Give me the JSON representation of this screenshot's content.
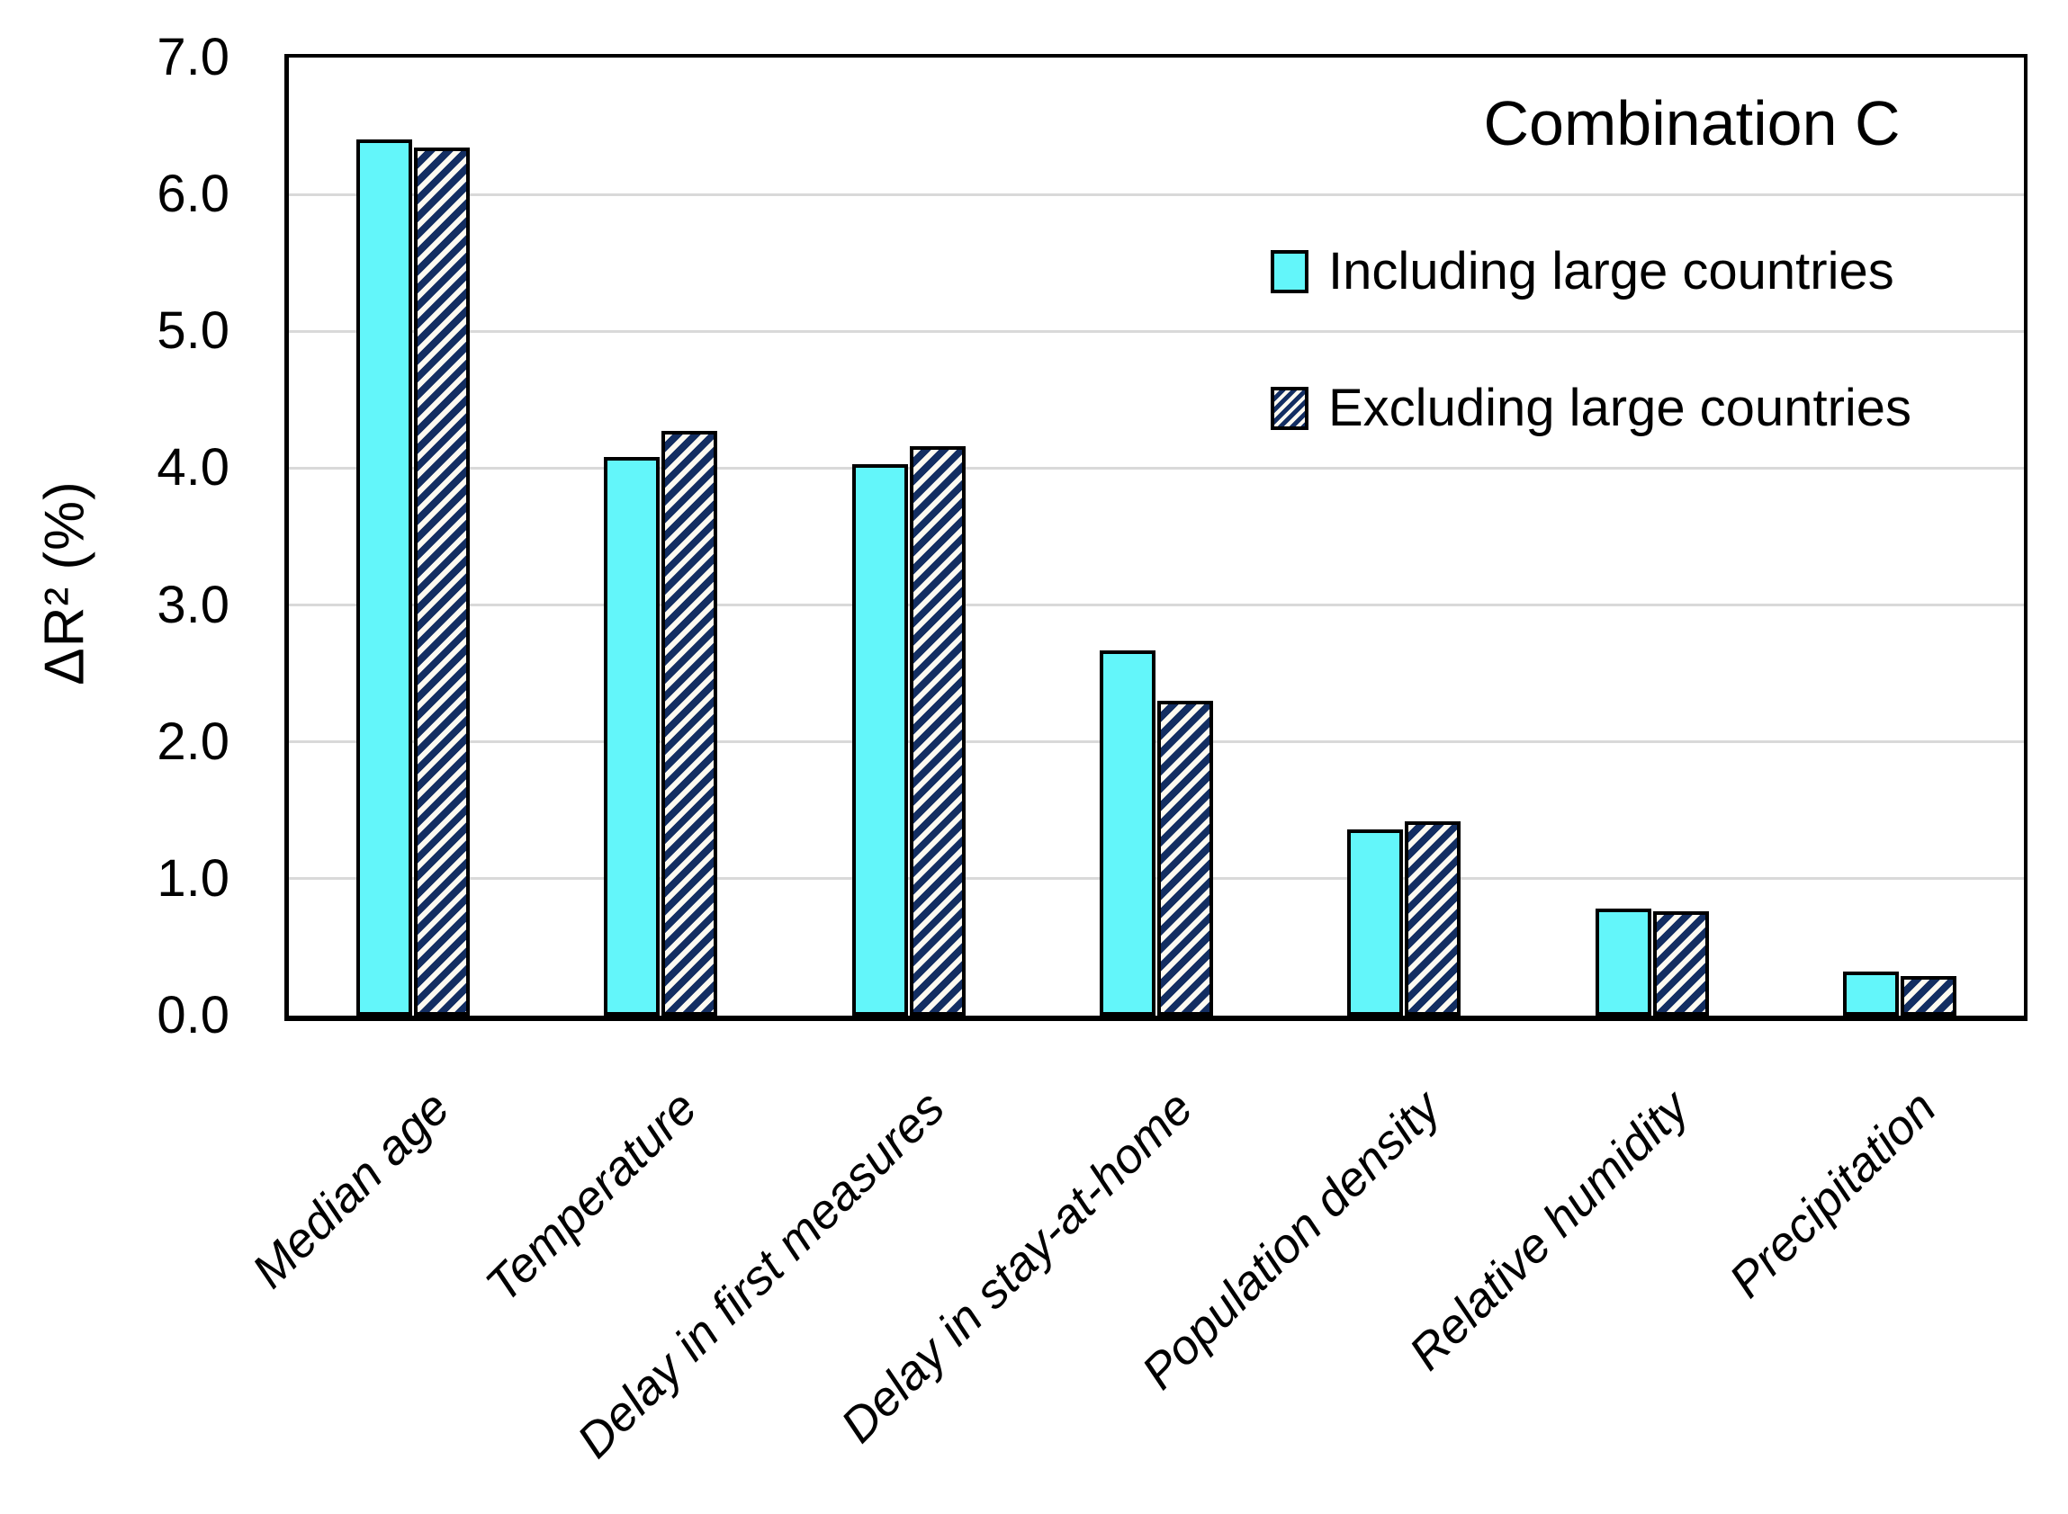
{
  "chart_data": {
    "type": "bar",
    "title": "Combination C",
    "ylabel": "ΔR²  (%)",
    "xlabel": "",
    "categories": [
      "Median age",
      "Temperature",
      "Delay in first measures",
      "Delay in stay-at-home",
      "Population density",
      "Relative humidity",
      "Precipitation"
    ],
    "series": [
      {
        "name": "Including large countries",
        "style": "solid",
        "values": [
          6.4,
          4.08,
          4.03,
          2.67,
          1.36,
          0.78,
          0.32
        ]
      },
      {
        "name": "Excluding large countries",
        "style": "hatched",
        "values": [
          6.34,
          4.27,
          4.16,
          2.3,
          1.42,
          0.76,
          0.29
        ]
      }
    ],
    "ylim": [
      0,
      7
    ],
    "ytick_labels": [
      "0.0",
      "1.0",
      "2.0",
      "3.0",
      "4.0",
      "5.0",
      "6.0",
      "7.0"
    ],
    "grid": true,
    "legend_position": "top-right",
    "colors": {
      "solid_fill": "#63f6fa",
      "hatch_stripe": "#132e62",
      "hatch_background": "#fdfaf1",
      "bar_border": "#000000",
      "gridline": "#d9d9d9",
      "text": "#000000"
    }
  }
}
